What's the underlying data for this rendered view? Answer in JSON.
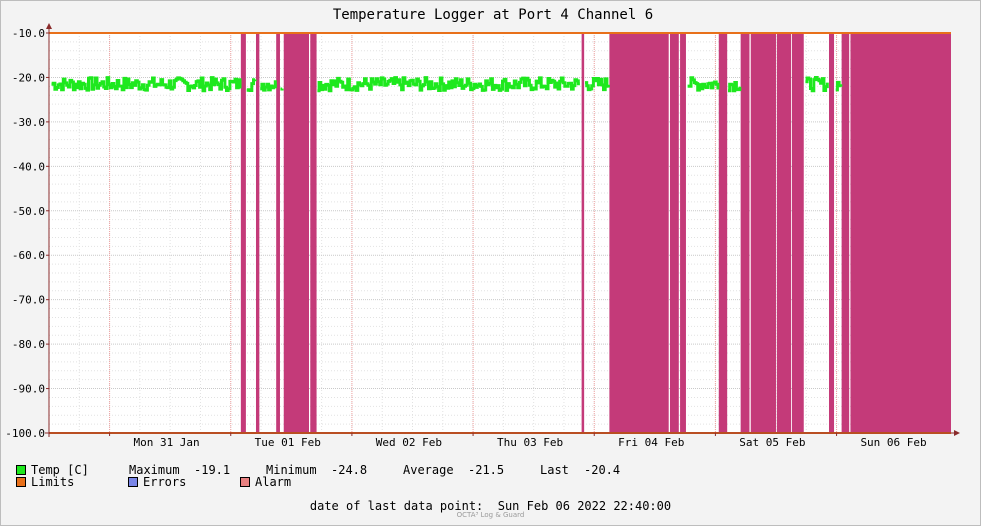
{
  "chart_data": {
    "type": "line",
    "title": "Temperature Logger at Port 4 Channel 6",
    "ylim": [
      -100,
      -10
    ],
    "y_ticks": [
      -10,
      -20,
      -30,
      -40,
      -50,
      -60,
      -70,
      -80,
      -90,
      -100
    ],
    "y_tick_labels": [
      "-10.0",
      "-20.0",
      "-30.0",
      "-40.0",
      "-50.0",
      "-60.0",
      "-70.0",
      "-80.0",
      "-90.0",
      "-100.0"
    ],
    "x_start": "2022-01-30T12:00",
    "x_end": "2022-02-06T22:40",
    "x_ticks": [
      {
        "t": "2022-01-31T00:00",
        "label": "Mon 31 Jan"
      },
      {
        "t": "2022-02-01T00:00",
        "label": "Tue 01 Feb"
      },
      {
        "t": "2022-02-02T00:00",
        "label": "Wed 02 Feb"
      },
      {
        "t": "2022-02-03T00:00",
        "label": "Thu 03 Feb"
      },
      {
        "t": "2022-02-04T00:00",
        "label": "Fri 04 Feb"
      },
      {
        "t": "2022-02-05T00:00",
        "label": "Sat 05 Feb"
      },
      {
        "t": "2022-02-06T00:00",
        "label": "Sun 06 Feb"
      }
    ],
    "limits": {
      "name": "Limits",
      "upper": -10,
      "lower": -100,
      "color": "#e8701a"
    },
    "temp_series": {
      "name": "Temp [C]",
      "color": "#1ee81e",
      "mean": -21.5,
      "max": -19.1,
      "min": -24.8,
      "last": -20.4
    },
    "alarm_periods": [
      {
        "start": "2022-02-01T02:00",
        "end": "2022-02-01T03:00"
      },
      {
        "start": "2022-02-01T05:00",
        "end": "2022-02-01T05:40"
      },
      {
        "start": "2022-02-01T09:00",
        "end": "2022-02-01T09:45"
      },
      {
        "start": "2022-02-01T10:30",
        "end": "2022-02-01T15:30"
      },
      {
        "start": "2022-02-01T15:45",
        "end": "2022-02-01T17:00"
      },
      {
        "start": "2022-02-03T21:30",
        "end": "2022-02-03T22:00"
      },
      {
        "start": "2022-02-04T03:00",
        "end": "2022-02-04T14:45"
      },
      {
        "start": "2022-02-04T15:00",
        "end": "2022-02-04T16:45"
      },
      {
        "start": "2022-02-04T17:00",
        "end": "2022-02-04T18:10"
      },
      {
        "start": "2022-02-05T00:40",
        "end": "2022-02-05T02:20"
      },
      {
        "start": "2022-02-05T05:00",
        "end": "2022-02-05T06:45"
      },
      {
        "start": "2022-02-05T07:00",
        "end": "2022-02-05T12:00"
      },
      {
        "start": "2022-02-05T12:10",
        "end": "2022-02-05T15:00"
      },
      {
        "start": "2022-02-05T15:10",
        "end": "2022-02-05T17:30"
      },
      {
        "start": "2022-02-05T22:30",
        "end": "2022-02-05T23:30"
      },
      {
        "start": "2022-02-06T01:00",
        "end": "2022-02-06T02:30"
      },
      {
        "start": "2022-02-06T02:45",
        "end": "2022-02-06T22:40"
      }
    ],
    "alarm_color": "#c43a79",
    "legend": {
      "temp_label": "Temp [C]",
      "limits_label": "Limits",
      "errors_label": "Errors",
      "alarm_label": "Alarm",
      "temp_color": "#1ee81e",
      "limits_color": "#e8701a",
      "errors_color": "#7a86e8",
      "alarm_color": "#e88080"
    },
    "stats": {
      "maximum_label": "Maximum",
      "maximum_value": "-19.1",
      "minimum_label": "Minimum",
      "minimum_value": "-24.8",
      "average_label": "Average",
      "average_value": "-21.5",
      "last_label": "Last",
      "last_value": "-20.4"
    }
  },
  "footer": {
    "date_label": "date of last data point:",
    "date_value": "Sun Feb 06 2022 22:40:00",
    "watermark": "OCTA³ Log & Guard"
  }
}
